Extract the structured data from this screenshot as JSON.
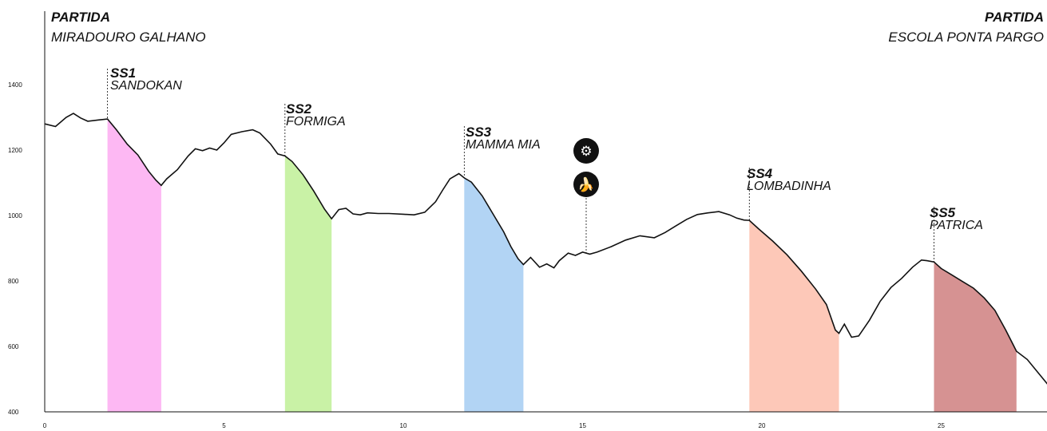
{
  "start": {
    "label": "PARTIDA",
    "name": "MIRADOURO GALHANO"
  },
  "finish": {
    "label": "PARTIDA",
    "name": "ESCOLA PONTA PARGO"
  },
  "icons": [
    {
      "name": "bike-repair-gear-icon",
      "glyph": "⚙"
    },
    {
      "name": "banana-food-icon",
      "glyph": "🍌"
    }
  ],
  "chart_data": {
    "type": "area",
    "xlim": [
      0,
      28
    ],
    "ylim": [
      400,
      1500
    ],
    "x_ticks": [
      0,
      5,
      10,
      15,
      20,
      25
    ],
    "y_ticks": [
      400,
      600,
      800,
      1000,
      1200,
      1400
    ],
    "profile": [
      [
        0,
        1280
      ],
      [
        0.3,
        1272
      ],
      [
        0.6,
        1300
      ],
      [
        0.8,
        1312
      ],
      [
        1.0,
        1298
      ],
      [
        1.2,
        1288
      ],
      [
        1.5,
        1292
      ],
      [
        1.75,
        1295
      ],
      [
        2.0,
        1262
      ],
      [
        2.3,
        1218
      ],
      [
        2.6,
        1185
      ],
      [
        2.9,
        1135
      ],
      [
        3.1,
        1108
      ],
      [
        3.25,
        1092
      ],
      [
        3.4,
        1112
      ],
      [
        3.7,
        1140
      ],
      [
        4.0,
        1182
      ],
      [
        4.2,
        1204
      ],
      [
        4.4,
        1198
      ],
      [
        4.6,
        1206
      ],
      [
        4.8,
        1200
      ],
      [
        5.0,
        1222
      ],
      [
        5.2,
        1248
      ],
      [
        5.5,
        1256
      ],
      [
        5.8,
        1262
      ],
      [
        6.0,
        1252
      ],
      [
        6.3,
        1218
      ],
      [
        6.5,
        1188
      ],
      [
        6.7,
        1182
      ],
      [
        6.9,
        1165
      ],
      [
        7.2,
        1125
      ],
      [
        7.5,
        1075
      ],
      [
        7.8,
        1020
      ],
      [
        8.0,
        990
      ],
      [
        8.2,
        1018
      ],
      [
        8.4,
        1022
      ],
      [
        8.6,
        1005
      ],
      [
        8.8,
        1002
      ],
      [
        9.0,
        1008
      ],
      [
        9.3,
        1006
      ],
      [
        9.6,
        1006
      ],
      [
        10.0,
        1004
      ],
      [
        10.3,
        1002
      ],
      [
        10.6,
        1010
      ],
      [
        10.9,
        1042
      ],
      [
        11.1,
        1078
      ],
      [
        11.3,
        1112
      ],
      [
        11.55,
        1128
      ],
      [
        11.7,
        1115
      ],
      [
        11.9,
        1102
      ],
      [
        12.2,
        1060
      ],
      [
        12.5,
        1005
      ],
      [
        12.8,
        950
      ],
      [
        13.0,
        905
      ],
      [
        13.2,
        868
      ],
      [
        13.35,
        850
      ],
      [
        13.55,
        872
      ],
      [
        13.8,
        842
      ],
      [
        14.0,
        852
      ],
      [
        14.2,
        840
      ],
      [
        14.35,
        862
      ],
      [
        14.6,
        885
      ],
      [
        14.8,
        878
      ],
      [
        15.0,
        888
      ],
      [
        15.2,
        882
      ],
      [
        15.4,
        888
      ],
      [
        15.8,
        905
      ],
      [
        16.2,
        925
      ],
      [
        16.6,
        938
      ],
      [
        17.0,
        932
      ],
      [
        17.3,
        948
      ],
      [
        17.6,
        968
      ],
      [
        17.9,
        988
      ],
      [
        18.2,
        1003
      ],
      [
        18.5,
        1008
      ],
      [
        18.8,
        1012
      ],
      [
        19.1,
        1002
      ],
      [
        19.3,
        992
      ],
      [
        19.5,
        986
      ],
      [
        19.65,
        985
      ],
      [
        19.9,
        960
      ],
      [
        20.3,
        922
      ],
      [
        20.7,
        880
      ],
      [
        21.1,
        830
      ],
      [
        21.5,
        775
      ],
      [
        21.8,
        728
      ],
      [
        22.05,
        650
      ],
      [
        22.15,
        640
      ],
      [
        22.3,
        668
      ],
      [
        22.5,
        628
      ],
      [
        22.7,
        632
      ],
      [
        23.0,
        680
      ],
      [
        23.3,
        738
      ],
      [
        23.6,
        780
      ],
      [
        23.9,
        808
      ],
      [
        24.2,
        842
      ],
      [
        24.45,
        864
      ],
      [
        24.6,
        862
      ],
      [
        24.8,
        858
      ],
      [
        25.0,
        838
      ],
      [
        25.3,
        818
      ],
      [
        25.6,
        798
      ],
      [
        25.9,
        778
      ],
      [
        26.2,
        748
      ],
      [
        26.5,
        710
      ],
      [
        26.8,
        650
      ],
      [
        27.1,
        585
      ],
      [
        27.4,
        560
      ],
      [
        27.7,
        520
      ],
      [
        28.0,
        480
      ]
    ],
    "stages": [
      {
        "code": "SS1",
        "name": "SANDOKAN",
        "start": 1.75,
        "end": 3.25,
        "color": "#fdb8f3"
      },
      {
        "code": "SS2",
        "name": "FORMIGA",
        "start": 6.7,
        "end": 8.0,
        "color": "#c9f2a6"
      },
      {
        "code": "SS3",
        "name": "MAMMA MIA",
        "start": 11.7,
        "end": 13.35,
        "color": "#b2d4f4"
      },
      {
        "code": "SS4",
        "name": "LOMBADINHA",
        "start": 19.65,
        "end": 22.15,
        "color": "#fdc8b8"
      },
      {
        "code": "SS5",
        "name": "PATRICA",
        "start": 24.8,
        "end": 27.1,
        "color": "#d69292"
      }
    ],
    "feed_zone_km": 15.1
  }
}
